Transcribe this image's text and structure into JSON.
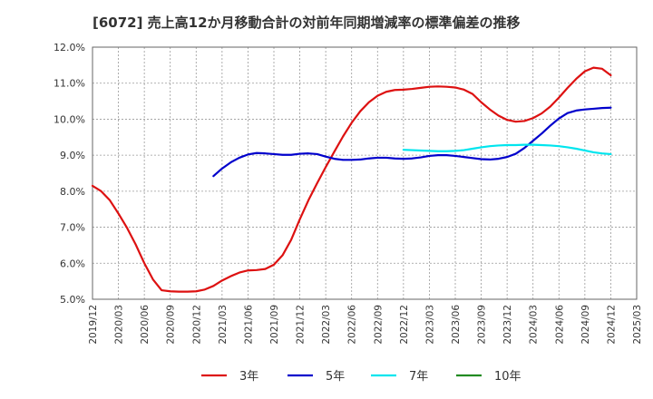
{
  "chart_data": {
    "type": "line",
    "title": "[6072]  売上高12か月移動合計の対前年同期増減率の標準偏差の推移",
    "xlabel": "",
    "ylabel": "",
    "ylim": [
      5.0,
      12.0
    ],
    "y_ticks": [
      "5.0%",
      "6.0%",
      "7.0%",
      "8.0%",
      "9.0%",
      "10.0%",
      "11.0%",
      "12.0%"
    ],
    "x_ticks": [
      "2019/12",
      "2020/03",
      "2020/06",
      "2020/09",
      "2020/12",
      "2021/03",
      "2021/06",
      "2021/09",
      "2021/12",
      "2022/03",
      "2022/06",
      "2022/09",
      "2022/12",
      "2023/03",
      "2023/06",
      "2023/09",
      "2023/12",
      "2024/03",
      "2024/06",
      "2024/09",
      "2024/12",
      "2025/03"
    ],
    "grid": true,
    "legend_position": "bottom",
    "series": [
      {
        "name": "3年",
        "color": "#dd1111",
        "values": [
          [
            "2019/12",
            8.15
          ],
          [
            "2020/01",
            8.0
          ],
          [
            "2020/02",
            7.75
          ],
          [
            "2020/03",
            7.38
          ],
          [
            "2020/04",
            6.98
          ],
          [
            "2020/05",
            6.52
          ],
          [
            "2020/06",
            6.0
          ],
          [
            "2020/07",
            5.55
          ],
          [
            "2020/08",
            5.25
          ],
          [
            "2020/09",
            5.22
          ],
          [
            "2020/10",
            5.21
          ],
          [
            "2020/11",
            5.21
          ],
          [
            "2020/12",
            5.22
          ],
          [
            "2021/01",
            5.27
          ],
          [
            "2021/02",
            5.37
          ],
          [
            "2021/03",
            5.52
          ],
          [
            "2021/04",
            5.64
          ],
          [
            "2021/05",
            5.74
          ],
          [
            "2021/06",
            5.8
          ],
          [
            "2021/07",
            5.81
          ],
          [
            "2021/08",
            5.84
          ],
          [
            "2021/09",
            5.96
          ],
          [
            "2021/10",
            6.22
          ],
          [
            "2021/11",
            6.65
          ],
          [
            "2021/12",
            7.22
          ],
          [
            "2022/01",
            7.75
          ],
          [
            "2022/02",
            8.22
          ],
          [
            "2022/03",
            8.67
          ],
          [
            "2022/04",
            9.1
          ],
          [
            "2022/05",
            9.52
          ],
          [
            "2022/06",
            9.9
          ],
          [
            "2022/07",
            10.22
          ],
          [
            "2022/08",
            10.47
          ],
          [
            "2022/09",
            10.65
          ],
          [
            "2022/10",
            10.76
          ],
          [
            "2022/11",
            10.81
          ],
          [
            "2022/12",
            10.82
          ],
          [
            "2023/01",
            10.84
          ],
          [
            "2023/02",
            10.87
          ],
          [
            "2023/03",
            10.9
          ],
          [
            "2023/04",
            10.91
          ],
          [
            "2023/05",
            10.9
          ],
          [
            "2023/06",
            10.88
          ],
          [
            "2023/07",
            10.82
          ],
          [
            "2023/08",
            10.7
          ],
          [
            "2023/09",
            10.47
          ],
          [
            "2023/10",
            10.27
          ],
          [
            "2023/11",
            10.1
          ],
          [
            "2023/12",
            9.98
          ],
          [
            "2024/01",
            9.93
          ],
          [
            "2024/02",
            9.95
          ],
          [
            "2024/03",
            10.03
          ],
          [
            "2024/04",
            10.16
          ],
          [
            "2024/05",
            10.35
          ],
          [
            "2024/06",
            10.6
          ],
          [
            "2024/07",
            10.87
          ],
          [
            "2024/08",
            11.12
          ],
          [
            "2024/09",
            11.33
          ],
          [
            "2024/10",
            11.43
          ],
          [
            "2024/11",
            11.4
          ],
          [
            "2024/12",
            11.22
          ]
        ]
      },
      {
        "name": "5年",
        "color": "#0000cc",
        "values": [
          [
            "2021/02",
            8.42
          ],
          [
            "2021/03",
            8.63
          ],
          [
            "2021/04",
            8.8
          ],
          [
            "2021/05",
            8.93
          ],
          [
            "2021/06",
            9.02
          ],
          [
            "2021/07",
            9.06
          ],
          [
            "2021/08",
            9.05
          ],
          [
            "2021/09",
            9.03
          ],
          [
            "2021/10",
            9.01
          ],
          [
            "2021/11",
            9.01
          ],
          [
            "2021/12",
            9.04
          ],
          [
            "2022/01",
            9.05
          ],
          [
            "2022/02",
            9.03
          ],
          [
            "2022/03",
            8.96
          ],
          [
            "2022/04",
            8.9
          ],
          [
            "2022/05",
            8.87
          ],
          [
            "2022/06",
            8.87
          ],
          [
            "2022/07",
            8.88
          ],
          [
            "2022/08",
            8.91
          ],
          [
            "2022/09",
            8.93
          ],
          [
            "2022/10",
            8.93
          ],
          [
            "2022/11",
            8.91
          ],
          [
            "2022/12",
            8.9
          ],
          [
            "2023/01",
            8.91
          ],
          [
            "2023/02",
            8.94
          ],
          [
            "2023/03",
            8.98
          ],
          [
            "2023/04",
            9.0
          ],
          [
            "2023/05",
            9.0
          ],
          [
            "2023/06",
            8.98
          ],
          [
            "2023/07",
            8.95
          ],
          [
            "2023/08",
            8.92
          ],
          [
            "2023/09",
            8.89
          ],
          [
            "2023/10",
            8.88
          ],
          [
            "2023/11",
            8.9
          ],
          [
            "2023/12",
            8.95
          ],
          [
            "2024/01",
            9.04
          ],
          [
            "2024/02",
            9.2
          ],
          [
            "2024/03",
            9.4
          ],
          [
            "2024/04",
            9.6
          ],
          [
            "2024/05",
            9.82
          ],
          [
            "2024/06",
            10.02
          ],
          [
            "2024/07",
            10.17
          ],
          [
            "2024/08",
            10.24
          ],
          [
            "2024/09",
            10.27
          ],
          [
            "2024/10",
            10.29
          ],
          [
            "2024/11",
            10.31
          ],
          [
            "2024/12",
            10.32
          ]
        ]
      },
      {
        "name": "7年",
        "color": "#00e5ee",
        "values": [
          [
            "2022/12",
            9.15
          ],
          [
            "2023/01",
            9.14
          ],
          [
            "2023/02",
            9.13
          ],
          [
            "2023/03",
            9.12
          ],
          [
            "2023/04",
            9.11
          ],
          [
            "2023/05",
            9.11
          ],
          [
            "2023/06",
            9.12
          ],
          [
            "2023/07",
            9.14
          ],
          [
            "2023/08",
            9.18
          ],
          [
            "2023/09",
            9.22
          ],
          [
            "2023/10",
            9.25
          ],
          [
            "2023/11",
            9.27
          ],
          [
            "2023/12",
            9.28
          ],
          [
            "2024/01",
            9.28
          ],
          [
            "2024/02",
            9.29
          ],
          [
            "2024/03",
            9.29
          ],
          [
            "2024/04",
            9.28
          ],
          [
            "2024/05",
            9.27
          ],
          [
            "2024/06",
            9.25
          ],
          [
            "2024/07",
            9.22
          ],
          [
            "2024/08",
            9.18
          ],
          [
            "2024/09",
            9.13
          ],
          [
            "2024/10",
            9.08
          ],
          [
            "2024/11",
            9.05
          ],
          [
            "2024/12",
            9.03
          ]
        ]
      },
      {
        "name": "10年",
        "color": "#228b22",
        "values": []
      }
    ]
  }
}
